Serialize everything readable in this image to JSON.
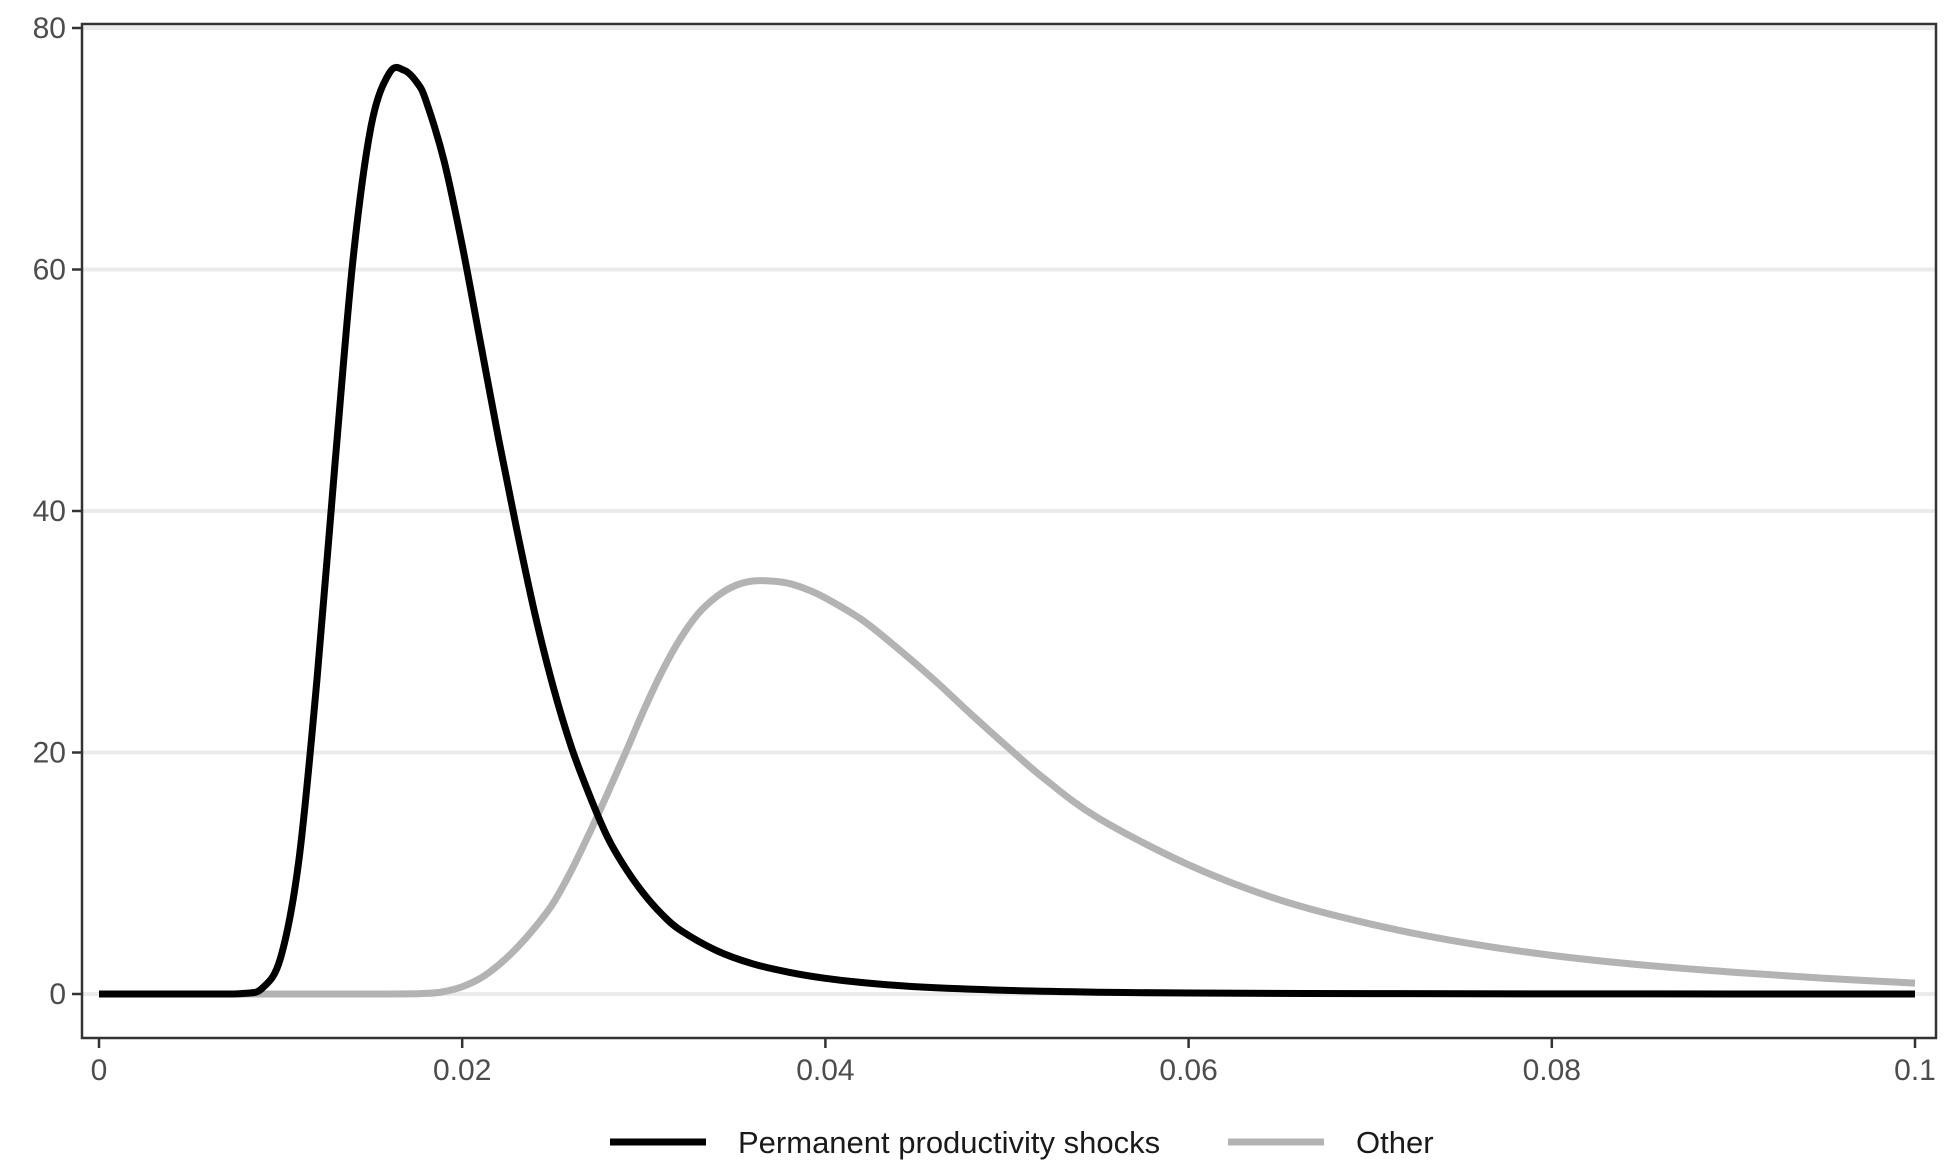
{
  "chart_data": {
    "type": "line",
    "title": "",
    "xlabel": "",
    "ylabel": "",
    "xlim": [
      0,
      0.1
    ],
    "ylim": [
      0,
      80
    ],
    "grid": "horizontal major gridlines",
    "legend_position": "bottom",
    "x_ticks": [
      {
        "value": 0,
        "label": "0"
      },
      {
        "value": 0.02,
        "label": "0.02"
      },
      {
        "value": 0.04,
        "label": "0.04"
      },
      {
        "value": 0.06,
        "label": "0.06"
      },
      {
        "value": 0.08,
        "label": "0.08"
      },
      {
        "value": 0.1,
        "label": "0.1"
      }
    ],
    "y_ticks": [
      {
        "value": 0,
        "label": "0"
      },
      {
        "value": 20,
        "label": "20"
      },
      {
        "value": 40,
        "label": "40"
      },
      {
        "value": 60,
        "label": "60"
      },
      {
        "value": 80,
        "label": "80"
      }
    ],
    "series": [
      {
        "name": "Permanent productivity shocks",
        "color": "#000000",
        "x": [
          0,
          0.006,
          0.008,
          0.009,
          0.01,
          0.011,
          0.012,
          0.013,
          0.014,
          0.015,
          0.016,
          0.0168,
          0.0175,
          0.018,
          0.019,
          0.02,
          0.021,
          0.022,
          0.023,
          0.024,
          0.025,
          0.026,
          0.027,
          0.028,
          0.029,
          0.03,
          0.031,
          0.032,
          0.034,
          0.036,
          0.038,
          0.04,
          0.042,
          0.045,
          0.05,
          0.055,
          0.06,
          0.07,
          0.08,
          0.09,
          0.1
        ],
        "y": [
          0,
          0,
          0.05,
          0.5,
          3,
          11,
          26,
          44,
          61,
          72,
          76.3,
          76.5,
          75.5,
          74,
          69,
          62,
          54,
          46,
          38.5,
          31.5,
          25.5,
          20.5,
          16.5,
          13,
          10.4,
          8.3,
          6.6,
          5.3,
          3.6,
          2.5,
          1.8,
          1.3,
          0.95,
          0.6,
          0.3,
          0.15,
          0.08,
          0.03,
          0.01,
          0.005,
          0
        ]
      },
      {
        "name": "Other",
        "color": "#b3b3b3",
        "x": [
          0,
          0.015,
          0.018,
          0.019,
          0.02,
          0.021,
          0.022,
          0.023,
          0.024,
          0.025,
          0.026,
          0.027,
          0.028,
          0.029,
          0.03,
          0.031,
          0.032,
          0.033,
          0.034,
          0.035,
          0.036,
          0.037,
          0.038,
          0.039,
          0.04,
          0.042,
          0.044,
          0.046,
          0.048,
          0.05,
          0.052,
          0.055,
          0.06,
          0.065,
          0.07,
          0.075,
          0.08,
          0.085,
          0.09,
          0.095,
          0.1
        ],
        "y": [
          0,
          0,
          0.05,
          0.2,
          0.6,
          1.3,
          2.4,
          3.8,
          5.5,
          7.5,
          10.2,
          13.3,
          16.6,
          20,
          23.5,
          26.7,
          29.4,
          31.5,
          32.9,
          33.8,
          34.2,
          34.2,
          34,
          33.5,
          32.8,
          31,
          28.6,
          26,
          23.2,
          20.5,
          17.9,
          14.6,
          10.7,
          7.8,
          5.8,
          4.3,
          3.2,
          2.4,
          1.8,
          1.3,
          0.9
        ]
      }
    ]
  }
}
